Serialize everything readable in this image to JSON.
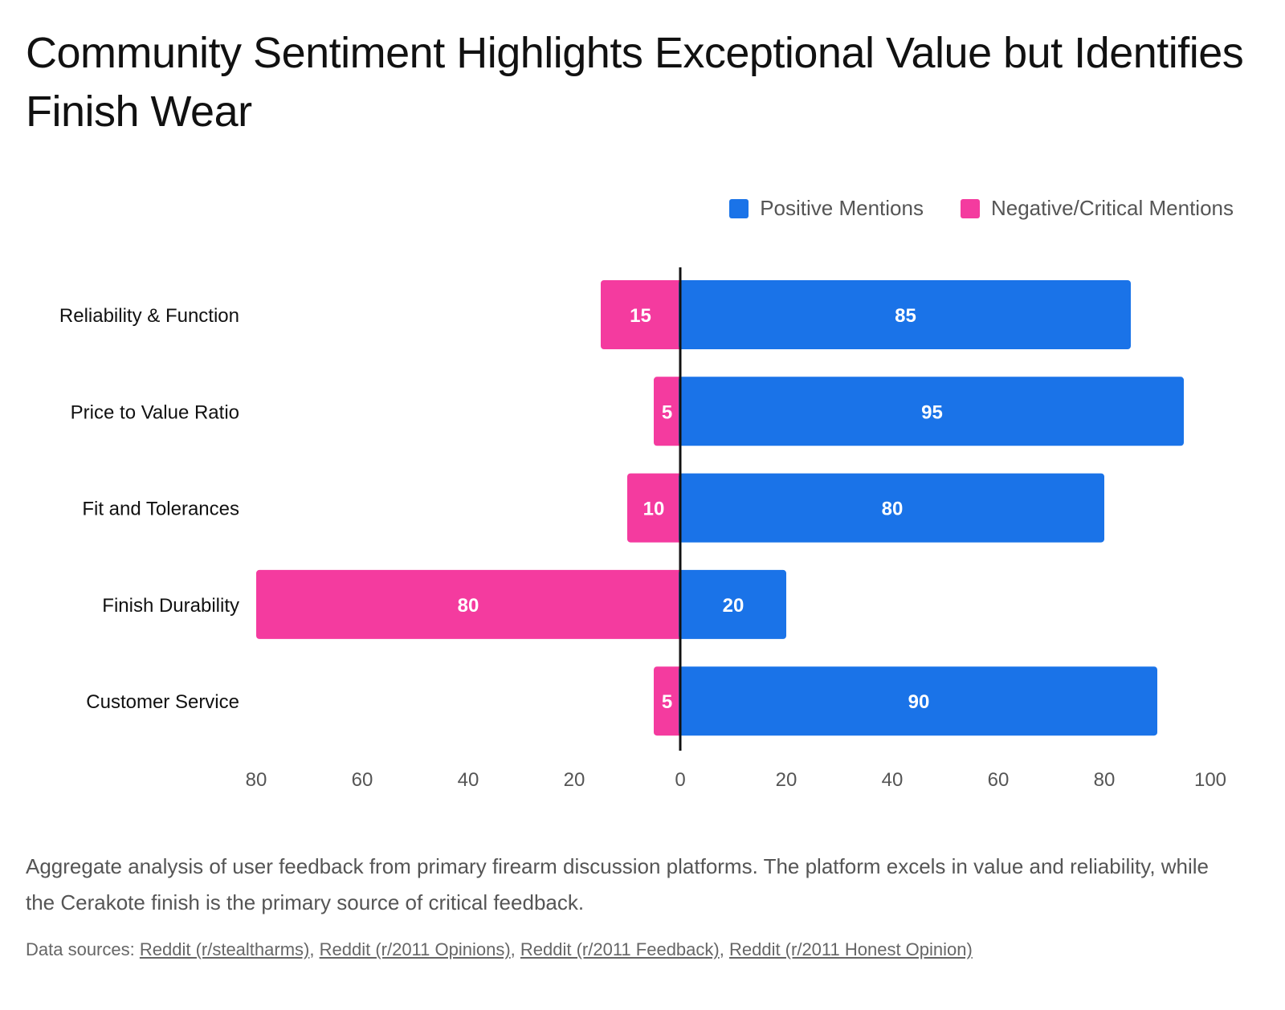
{
  "title": "Community Sentiment Highlights Exceptional Value but Identifies Finish Wear",
  "description": "Aggregate analysis of user feedback from primary firearm discussion platforms. The platform excels in value and reliability, while the Cerakote finish is the primary source of critical feedback.",
  "sources": {
    "label": "Data sources:",
    "links": [
      "Reddit (r/stealtharms)",
      "Reddit (r/2011 Opinions)",
      "Reddit (r/2011 Feedback)",
      "Reddit (r/2011 Honest Opinion)"
    ]
  },
  "chart_data": {
    "type": "bar",
    "orientation": "horizontal-diverging",
    "categories": [
      "Reliability & Function",
      "Price to Value Ratio",
      "Fit and Tolerances",
      "Finish Durability",
      "Customer Service"
    ],
    "series": [
      {
        "name": "Positive Mentions",
        "values": [
          85,
          95,
          80,
          20,
          90
        ],
        "color": "#1a73e8",
        "direction": "right"
      },
      {
        "name": "Negative/Critical Mentions",
        "values": [
          15,
          5,
          10,
          80,
          5
        ],
        "color": "#f43b9f",
        "direction": "left"
      }
    ],
    "xlim": [
      -80,
      100
    ],
    "x_ticks": [
      "80",
      "60",
      "40",
      "20",
      "0",
      "20",
      "40",
      "60",
      "80",
      "100"
    ],
    "legend": "top-right",
    "grid": false,
    "data_labels": true
  }
}
